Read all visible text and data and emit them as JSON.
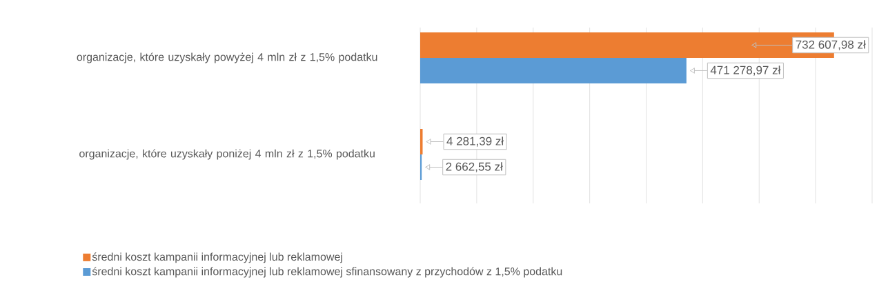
{
  "chart_data": {
    "type": "bar",
    "orientation": "horizontal",
    "categories": [
      "organizacje, które uzyskały powyżej  4 mln zł z 1,5% podatku",
      "organizacje, które uzyskały poniżej 4 mln zł z 1,5% podatku"
    ],
    "series": [
      {
        "name": "średni koszt kampanii informacyjnej lub reklamowej",
        "color": "#ed7d31",
        "values": [
          732607.98,
          4281.39
        ],
        "value_labels": [
          "732 607,98 zł",
          "4 281,39 zł"
        ]
      },
      {
        "name": "średni koszt kampanii informacyjnej lub reklamowej sfinansowany z przychodów z 1,5% podatku",
        "color": "#5b9bd5",
        "values": [
          471278.97,
          2662.55
        ],
        "value_labels": [
          "471 278,97 zł",
          "2 662,55 zł"
        ]
      }
    ],
    "xlim": [
      0,
      800000
    ],
    "xticks": [
      {
        "value": 0,
        "label": null
      },
      {
        "value": 100000,
        "label": null
      },
      {
        "value": 200000,
        "label": null
      },
      {
        "value": 300000,
        "label": null
      },
      {
        "value": 400000,
        "label": null
      },
      {
        "value": 500000,
        "label": null
      },
      {
        "value": 600000,
        "label": null
      },
      {
        "value": 700000,
        "label": null
      },
      {
        "value": 800000,
        "label": null
      }
    ],
    "grid": "x",
    "legend": "bottom"
  }
}
